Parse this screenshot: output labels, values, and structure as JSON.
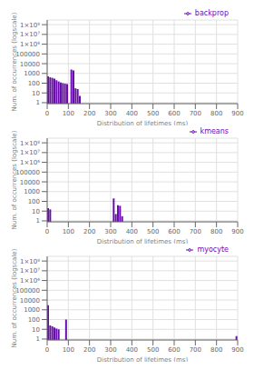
{
  "chart_data": [
    {
      "type": "bar",
      "xlabel": "Distribution of lifetimes (ms)",
      "ylabel": "Num. of occurrences (logscale)",
      "x": [
        5,
        15,
        25,
        35,
        45,
        55,
        65,
        75,
        85,
        95,
        115,
        125,
        135,
        145,
        155
      ],
      "series": [
        {
          "name": "backprop",
          "values": [
            500,
            400,
            350,
            300,
            200,
            150,
            120,
            100,
            90,
            80,
            2500,
            2000,
            30,
            25,
            5
          ]
        }
      ],
      "color": "#6a0dad",
      "xlim": [
        0,
        900
      ],
      "ylim": [
        0.8,
        300000000
      ],
      "xticks": [
        0,
        100,
        200,
        300,
        400,
        500,
        600,
        700,
        800,
        900
      ],
      "yticks": [
        1,
        10,
        100,
        1000,
        10000,
        100000,
        {
          "value": 1000000,
          "label": "1×10⁶"
        },
        {
          "value": 10000000,
          "label": "1×10⁷"
        },
        {
          "value": 100000000,
          "label": "1×10⁸"
        }
      ],
      "log": "y",
      "grid": true,
      "legend": "upper right"
    },
    {
      "type": "bar",
      "xlabel": "Distribution of lifetimes (ms)",
      "ylabel": "Num. of occurrences (logscale)",
      "x": [
        5,
        15,
        315,
        325,
        335,
        345,
        355
      ],
      "series": [
        {
          "name": "kmeans",
          "values": [
            20,
            15,
            200,
            5,
            40,
            35,
            3
          ]
        }
      ],
      "color": "#6a0dad",
      "xlim": [
        0,
        900
      ],
      "ylim": [
        0.8,
        300000000
      ],
      "xticks": [
        0,
        100,
        200,
        300,
        400,
        500,
        600,
        700,
        800,
        900
      ],
      "yticks": [
        1,
        10,
        100,
        1000,
        10000,
        100000,
        {
          "value": 1000000,
          "label": "1×10⁶"
        },
        {
          "value": 10000000,
          "label": "1×10⁷"
        },
        {
          "value": 100000000,
          "label": "1×10⁸"
        }
      ],
      "log": "y",
      "grid": true,
      "legend": "upper right"
    },
    {
      "type": "bar",
      "xlabel": "Distribution of lifetimes (ms)",
      "ylabel": "Num. of occurrences (logscale)",
      "x": [
        5,
        15,
        25,
        35,
        45,
        55,
        90,
        895
      ],
      "series": [
        {
          "name": "myocyte",
          "values": [
            3000,
            25,
            20,
            15,
            12,
            10,
            100,
            2
          ]
        }
      ],
      "color": "#6a0dad",
      "xlim": [
        0,
        900
      ],
      "ylim": [
        0.8,
        300000000
      ],
      "xticks": [
        0,
        100,
        200,
        300,
        400,
        500,
        600,
        700,
        800,
        900
      ],
      "yticks": [
        1,
        10,
        100,
        1000,
        10000,
        100000,
        {
          "value": 1000000,
          "label": "1×10⁶"
        },
        {
          "value": 10000000,
          "label": "1×10⁷"
        },
        {
          "value": 100000000,
          "label": "1×10⁸"
        }
      ],
      "log": "y",
      "grid": true,
      "legend": "upper right"
    }
  ]
}
